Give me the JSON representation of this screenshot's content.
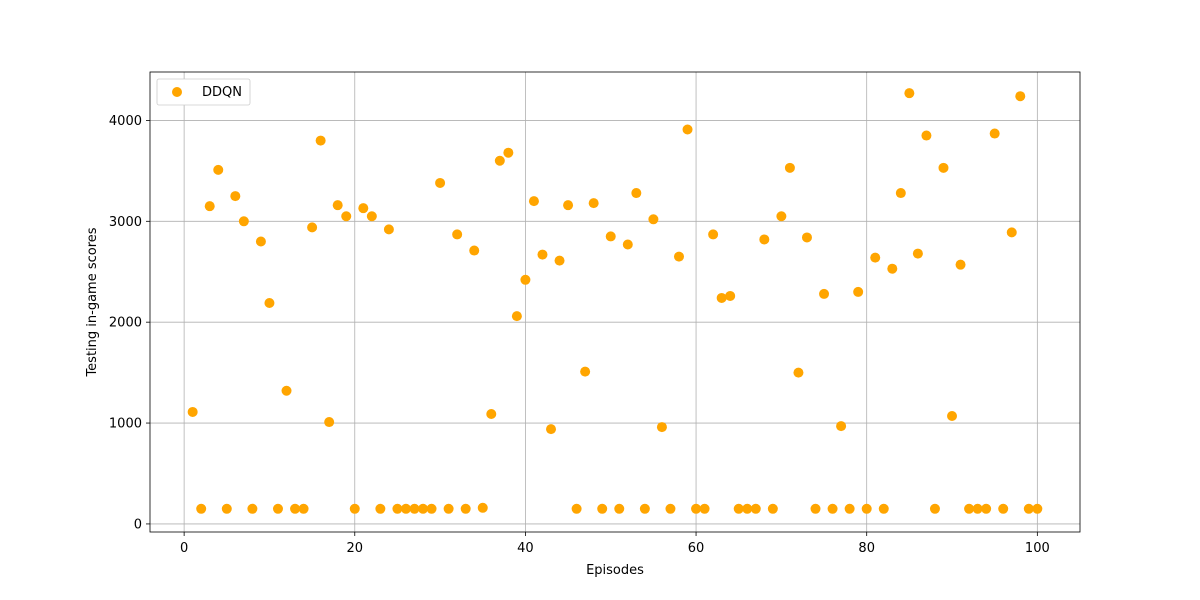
{
  "chart_data": {
    "type": "scatter",
    "xlabel": "Episodes",
    "ylabel": "Testing in-game scores",
    "xlim": [
      -4,
      105
    ],
    "ylim": [
      -80,
      4480
    ],
    "xticks": [
      0,
      20,
      40,
      60,
      80,
      100
    ],
    "yticks": [
      0,
      1000,
      2000,
      3000,
      4000
    ],
    "grid": true,
    "legend_position": "top-left",
    "series": [
      {
        "name": "DDQN",
        "color": "#ffa500",
        "x": [
          1,
          2,
          3,
          4,
          5,
          6,
          7,
          8,
          9,
          10,
          11,
          12,
          13,
          14,
          15,
          16,
          17,
          18,
          19,
          20,
          21,
          22,
          23,
          24,
          25,
          26,
          27,
          28,
          29,
          30,
          31,
          32,
          33,
          34,
          35,
          36,
          37,
          38,
          39,
          40,
          41,
          42,
          43,
          44,
          45,
          46,
          47,
          48,
          49,
          50,
          51,
          52,
          53,
          54,
          55,
          56,
          57,
          58,
          59,
          60,
          61,
          62,
          63,
          64,
          65,
          66,
          67,
          68,
          69,
          70,
          71,
          72,
          73,
          74,
          75,
          76,
          77,
          78,
          79,
          80,
          81,
          82,
          83,
          84,
          85,
          86,
          87,
          88,
          89,
          90,
          91,
          92,
          93,
          94,
          95,
          96,
          97,
          98,
          99,
          100
        ],
        "y": [
          1110,
          150,
          3150,
          3510,
          150,
          3250,
          3000,
          150,
          2800,
          2190,
          150,
          1320,
          150,
          150,
          2940,
          3800,
          1010,
          3160,
          3050,
          150,
          3130,
          3050,
          150,
          2920,
          150,
          150,
          150,
          150,
          150,
          3380,
          150,
          2870,
          150,
          2710,
          160,
          1090,
          3600,
          3680,
          2060,
          2420,
          3200,
          2670,
          940,
          2610,
          3160,
          150,
          1510,
          3180,
          150,
          2850,
          150,
          2770,
          3280,
          150,
          3020,
          960,
          150,
          2650,
          3910,
          150,
          150,
          2870,
          2240,
          2260,
          150,
          150,
          150,
          2820,
          150,
          3050,
          3530,
          1500,
          2840,
          150,
          2280,
          150,
          970,
          150,
          2300,
          150,
          2640,
          150,
          2530,
          3280,
          4270,
          2680,
          3850,
          150,
          3530,
          1070,
          2570,
          150,
          150,
          150,
          3870,
          150,
          2890,
          4240,
          150,
          150
        ]
      }
    ]
  }
}
